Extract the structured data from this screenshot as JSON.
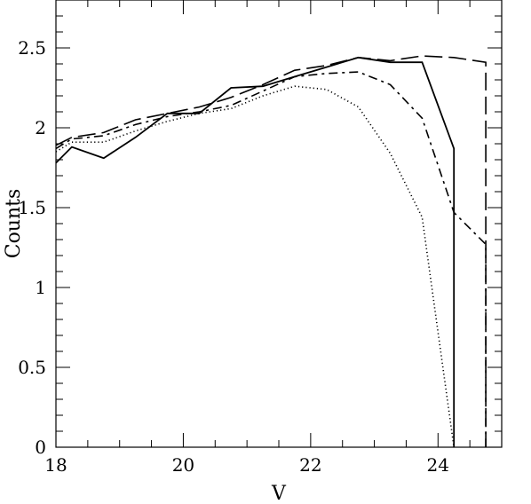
{
  "chart_data": {
    "type": "line",
    "title": "",
    "xlabel": "V",
    "ylabel": "Counts",
    "xlim": [
      18,
      25
    ],
    "ylim": [
      0,
      2.8
    ],
    "x_major_ticks": [
      18,
      20,
      22,
      24
    ],
    "x_tick_labels": [
      "18",
      "20",
      "22",
      "24"
    ],
    "x_minor_step": 0.5,
    "y_major_ticks": [
      0,
      0.5,
      1,
      1.5,
      2,
      2.5
    ],
    "y_tick_labels": [
      "0",
      "0.5",
      "1",
      "1.5",
      "2",
      "2.5"
    ],
    "y_minor_step": 0.1,
    "grid": false,
    "legend": "none",
    "series": [
      {
        "style": "solid",
        "x": [
          18.0,
          18.25,
          18.75,
          19.25,
          19.75,
          20.25,
          20.75,
          21.25,
          21.75,
          22.25,
          22.75,
          23.25,
          23.75,
          24.25,
          24.25
        ],
        "y": [
          1.78,
          1.88,
          1.81,
          1.94,
          2.09,
          2.09,
          2.25,
          2.26,
          2.32,
          2.38,
          2.44,
          2.41,
          2.41,
          1.87,
          0
        ]
      },
      {
        "style": "dotted",
        "x": [
          18.0,
          18.25,
          18.75,
          19.25,
          19.75,
          20.25,
          20.75,
          21.25,
          21.75,
          22.25,
          22.75,
          23.25,
          23.75,
          24.25
        ],
        "y": [
          1.85,
          1.91,
          1.91,
          1.98,
          2.04,
          2.09,
          2.12,
          2.2,
          2.26,
          2.24,
          2.13,
          1.84,
          1.44,
          0
        ]
      },
      {
        "style": "short-dash",
        "x": [
          18.0,
          18.25,
          18.75,
          19.25,
          19.75,
          20.25,
          20.75,
          21.25,
          21.75,
          22.25,
          22.75,
          23.25,
          23.75,
          24.25,
          24.75,
          24.75
        ],
        "y": [
          1.87,
          1.93,
          1.95,
          2.02,
          2.07,
          2.1,
          2.14,
          2.23,
          2.32,
          2.34,
          2.35,
          2.27,
          2.06,
          1.47,
          1.27,
          0
        ]
      },
      {
        "style": "long-dash",
        "x": [
          18.0,
          18.25,
          18.75,
          19.25,
          19.75,
          20.25,
          20.75,
          21.25,
          21.75,
          22.25,
          22.75,
          23.25,
          23.75,
          24.25,
          24.75,
          24.75
        ],
        "y": [
          1.89,
          1.94,
          1.97,
          2.05,
          2.09,
          2.13,
          2.19,
          2.27,
          2.36,
          2.39,
          2.44,
          2.42,
          2.45,
          2.44,
          2.41,
          0
        ]
      }
    ]
  }
}
